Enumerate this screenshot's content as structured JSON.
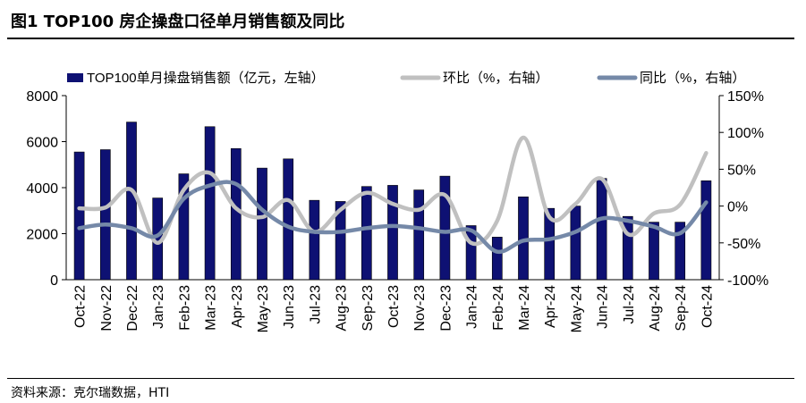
{
  "figure": {
    "title": "图1   TOP100 房企操盘口径单月销售额及同比",
    "source": "资料来源：克尔瑞数据，HTI"
  },
  "chart_data": {
    "type": "bar",
    "categories": [
      "Oct-22",
      "Nov-22",
      "Dec-22",
      "Jan-23",
      "Feb-23",
      "Mar-23",
      "Apr-23",
      "May-23",
      "Jun-23",
      "Jul-23",
      "Aug-23",
      "Sep-23",
      "Oct-23",
      "Nov-23",
      "Dec-23",
      "Jan-24",
      "Feb-24",
      "Mar-24",
      "Apr-24",
      "May-24",
      "Jun-24",
      "Jul-24",
      "Aug-24",
      "Sep-24",
      "Oct-24"
    ],
    "series": [
      {
        "name": "TOP100单月操盘销售额（亿元，左轴）",
        "type": "bar",
        "axis": "left",
        "color": "#0e1173",
        "values": [
          5550,
          5650,
          6850,
          3550,
          4600,
          6650,
          5700,
          4850,
          5250,
          3450,
          3400,
          4050,
          4100,
          3900,
          4500,
          2350,
          1850,
          3600,
          3100,
          3200,
          4400,
          2750,
          2500,
          2500,
          4300
        ]
      },
      {
        "name": "环比（%，右轴）",
        "type": "line",
        "axis": "right",
        "color": "#c0c0c0",
        "values": [
          -3,
          -2,
          22,
          -50,
          22,
          45,
          -3,
          -15,
          8,
          -35,
          -5,
          18,
          3,
          -5,
          15,
          -50,
          -20,
          93,
          -15,
          3,
          37,
          -38,
          -10,
          2,
          72
        ]
      },
      {
        "name": "同比（%，右轴）",
        "type": "line",
        "axis": "right",
        "color": "#7589a8",
        "values": [
          -30,
          -25,
          -30,
          -40,
          10,
          28,
          30,
          -5,
          -28,
          -35,
          -35,
          -30,
          -27,
          -30,
          -35,
          -33,
          -62,
          -47,
          -45,
          -35,
          -17,
          -20,
          -28,
          -37,
          5
        ]
      }
    ],
    "y_left": {
      "min": 0,
      "max": 8000,
      "ticks": [
        "0",
        "2000",
        "4000",
        "6000",
        "8000"
      ]
    },
    "y_right": {
      "min": -100,
      "max": 150,
      "ticks": [
        "-100%",
        "-50%",
        "0%",
        "50%",
        "100%",
        "150%"
      ]
    },
    "legend_position": "top",
    "grid": false
  }
}
